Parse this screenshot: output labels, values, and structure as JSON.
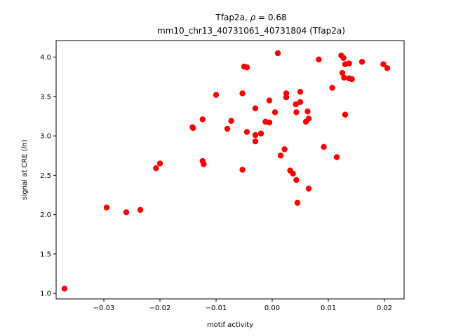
{
  "chart_data": {
    "type": "scatter",
    "title_prefix": "Tfap2a, ",
    "title_symbol": "ρ",
    "title_suffix": " = 0.68",
    "subtitle": "mm10_chr13_40731061_40731804 (Tfap2a)",
    "xlabel": "motif activity",
    "ylabel_prefix": "signal at CRE (",
    "ylabel_italic": "ln",
    "ylabel_suffix": ")",
    "xlim": [
      -0.0385,
      0.0235
    ],
    "ylim": [
      0.93,
      4.21
    ],
    "xticks": [
      -0.03,
      -0.02,
      -0.01,
      0.0,
      0.01,
      0.02
    ],
    "xtick_labels": [
      "−0.03",
      "−0.02",
      "−0.01",
      "0.00",
      "0.01",
      "0.02"
    ],
    "yticks": [
      1.0,
      1.5,
      2.0,
      2.5,
      3.0,
      3.5,
      4.0
    ],
    "ytick_labels": [
      "1.0",
      "1.5",
      "2.0",
      "2.5",
      "3.0",
      "3.5",
      "4.0"
    ],
    "marker_color": "#ff0000",
    "points": [
      [
        -0.037,
        1.06
      ],
      [
        -0.0295,
        2.09
      ],
      [
        -0.026,
        2.03
      ],
      [
        -0.0235,
        2.06
      ],
      [
        -0.0207,
        2.59
      ],
      [
        -0.02,
        2.65
      ],
      [
        -0.0142,
        3.11
      ],
      [
        -0.0141,
        3.1
      ],
      [
        -0.0124,
        3.21
      ],
      [
        -0.0124,
        2.68
      ],
      [
        -0.0122,
        2.64
      ],
      [
        -0.01,
        3.52
      ],
      [
        -0.008,
        3.09
      ],
      [
        -0.0073,
        3.19
      ],
      [
        -0.0053,
        3.54
      ],
      [
        -0.0053,
        2.57
      ],
      [
        -0.005,
        3.88
      ],
      [
        -0.0045,
        3.87
      ],
      [
        -0.0045,
        3.05
      ],
      [
        -0.003,
        3.35
      ],
      [
        -0.003,
        3.01
      ],
      [
        -0.003,
        2.93
      ],
      [
        -0.002,
        3.03
      ],
      [
        -0.0012,
        3.18
      ],
      [
        -0.0005,
        3.45
      ],
      [
        -0.0005,
        3.17
      ],
      [
        0.0005,
        3.3
      ],
      [
        0.001,
        4.05
      ],
      [
        0.0015,
        2.75
      ],
      [
        0.0022,
        2.83
      ],
      [
        0.0025,
        3.54
      ],
      [
        0.0025,
        3.49
      ],
      [
        0.0032,
        2.56
      ],
      [
        0.0037,
        2.52
      ],
      [
        0.0042,
        3.4
      ],
      [
        0.0043,
        3.3
      ],
      [
        0.0043,
        2.44
      ],
      [
        0.0045,
        2.15
      ],
      [
        0.005,
        3.56
      ],
      [
        0.005,
        3.43
      ],
      [
        0.006,
        3.18
      ],
      [
        0.0063,
        3.31
      ],
      [
        0.0065,
        3.22
      ],
      [
        0.0065,
        2.33
      ],
      [
        0.0083,
        3.97
      ],
      [
        0.0092,
        2.86
      ],
      [
        0.0107,
        3.61
      ],
      [
        0.0115,
        2.73
      ],
      [
        0.0123,
        4.02
      ],
      [
        0.0125,
        3.8
      ],
      [
        0.0127,
        3.99
      ],
      [
        0.0128,
        3.74
      ],
      [
        0.013,
        3.91
      ],
      [
        0.013,
        3.27
      ],
      [
        0.0137,
        3.92
      ],
      [
        0.0137,
        3.73
      ],
      [
        0.0142,
        3.72
      ],
      [
        0.016,
        3.94
      ],
      [
        0.0198,
        3.91
      ],
      [
        0.0205,
        3.86
      ]
    ]
  }
}
